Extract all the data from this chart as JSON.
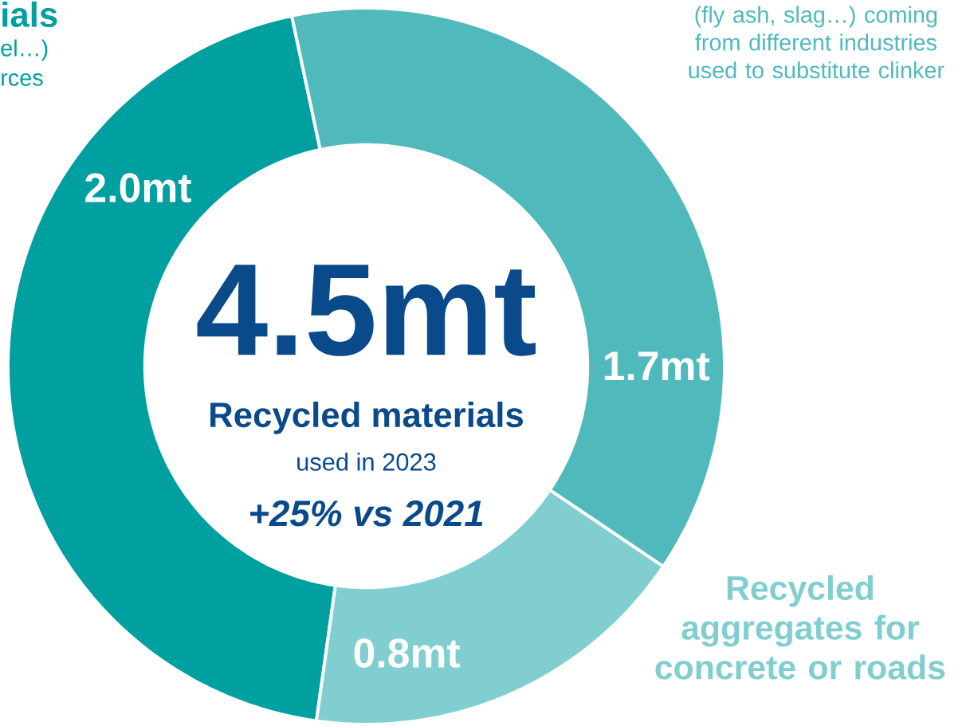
{
  "chart_data": {
    "type": "donut",
    "title": "4.5mt",
    "subtitle": "Recycled materials",
    "categories": [
      null,
      "(fly ash, slag…) coming from different industries used to substitute clinker",
      "Recycled aggregates for concrete or roads"
    ],
    "values": [
      2.0,
      1.7,
      0.8
    ],
    "colors": [
      "#009fa0",
      "#4fb9bc",
      "#80cecf"
    ],
    "value_labels": [
      "2.0mt",
      "1.7mt",
      "0.8mt"
    ],
    "annotations": [
      "ials",
      "el…)",
      "rces",
      "used in 2023",
      "+25% vs 2021"
    ]
  }
}
